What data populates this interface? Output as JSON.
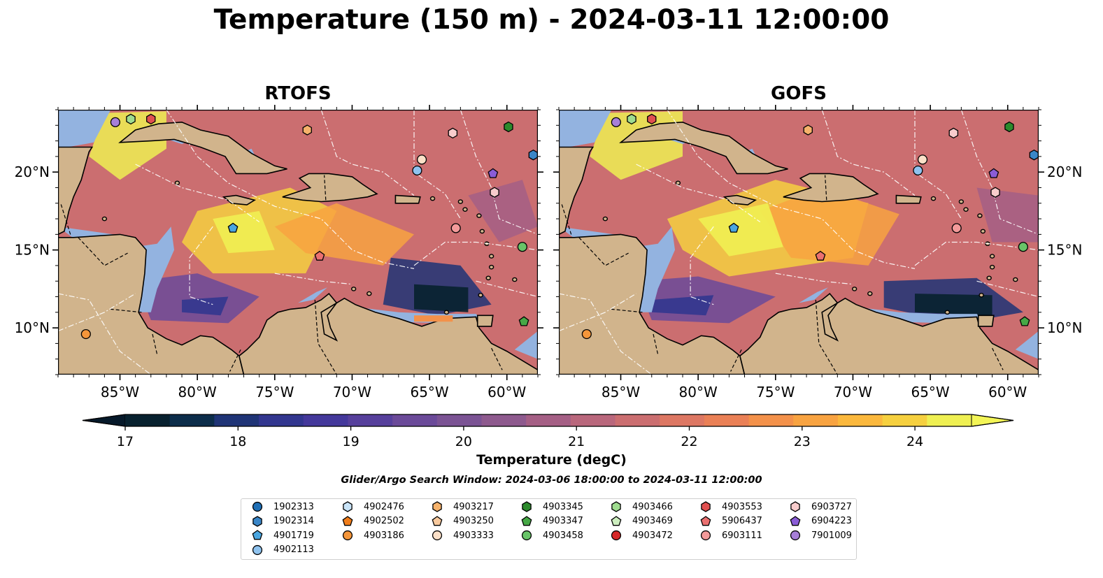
{
  "title": "Temperature (150 m) - 2024-03-11 12:00:00",
  "panels": [
    {
      "title": "RTOFS"
    },
    {
      "title": "GOFS"
    }
  ],
  "lat_labels": [
    "20°N",
    "15°N",
    "10°N"
  ],
  "lon_labels": [
    "85°W",
    "80°W",
    "75°W",
    "70°W",
    "65°W",
    "60°W"
  ],
  "colorbar": {
    "label": "Temperature (degC)",
    "ticks": [
      "17",
      "18",
      "19",
      "20",
      "21",
      "22",
      "23",
      "24"
    ],
    "colors": [
      "#08212f",
      "#0c2d4a",
      "#1f3476",
      "#32368f",
      "#44389b",
      "#57409c",
      "#6b4a99",
      "#7b5394",
      "#8e5a8e",
      "#a55f85",
      "#b9677c",
      "#cb6e70",
      "#dd7763",
      "#ea8056",
      "#f3914a",
      "#f8a341",
      "#fbb83d",
      "#f6d03f",
      "#eff052"
    ],
    "extend_min_color": "#06192a",
    "extend_max_color": "#f3f557"
  },
  "search_window": "Glider/Argo Search Window: 2024-03-06 18:00:00 to 2024-03-11 12:00:00",
  "colors": {
    "land": "#d1b48c",
    "shallow_water": "#93b3e0",
    "deep_pacific": "#082130"
  },
  "legend": [
    {
      "id": "1902313",
      "shape": "circle",
      "color": "#1f6fb5"
    },
    {
      "id": "1902314",
      "shape": "hexagon",
      "color": "#3a86c8"
    },
    {
      "id": "4901719",
      "shape": "pentagon",
      "color": "#4aa6e0"
    },
    {
      "id": "4902113",
      "shape": "circle",
      "color": "#8fc3ef"
    },
    {
      "id": "4902476",
      "shape": "hexagon",
      "color": "#c9e4f8"
    },
    {
      "id": "4902502",
      "shape": "pentagon",
      "color": "#f07d1a"
    },
    {
      "id": "4903186",
      "shape": "circle",
      "color": "#f5963a"
    },
    {
      "id": "4903217",
      "shape": "hexagon",
      "color": "#f6b26b"
    },
    {
      "id": "4903250",
      "shape": "pentagon",
      "color": "#f8c99d"
    },
    {
      "id": "4903333",
      "shape": "circle",
      "color": "#fbe0c8"
    },
    {
      "id": "4903345",
      "shape": "hexagon",
      "color": "#2c8a2c"
    },
    {
      "id": "4903347",
      "shape": "pentagon",
      "color": "#46a846"
    },
    {
      "id": "4903458",
      "shape": "circle",
      "color": "#68c468"
    },
    {
      "id": "4903466",
      "shape": "hexagon",
      "color": "#9fdc8f"
    },
    {
      "id": "4903469",
      "shape": "pentagon",
      "color": "#cdeebf"
    },
    {
      "id": "4903472",
      "shape": "circle",
      "color": "#d62728"
    },
    {
      "id": "4903553",
      "shape": "hexagon",
      "color": "#e05050"
    },
    {
      "id": "5906437",
      "shape": "pentagon",
      "color": "#ea7070"
    },
    {
      "id": "6903111",
      "shape": "circle",
      "color": "#f39a9a"
    },
    {
      "id": "6903727",
      "shape": "hexagon",
      "color": "#f8cccc"
    },
    {
      "id": "6904223",
      "shape": "pentagon",
      "color": "#8a5cd6"
    },
    {
      "id": "7901009",
      "shape": "circle",
      "color": "#a77fd8"
    }
  ],
  "markers": [
    {
      "id": "7901009",
      "lon": -85.3,
      "lat": 23.2
    },
    {
      "id": "4903466",
      "lon": -84.3,
      "lat": 23.4
    },
    {
      "id": "4903553",
      "lon": -83.0,
      "lat": 23.4
    },
    {
      "id": "4903217",
      "lon": -72.9,
      "lat": 22.7
    },
    {
      "id": "6903727",
      "lon": -63.5,
      "lat": 22.5
    },
    {
      "id": "4903345",
      "lon": -59.9,
      "lat": 22.9
    },
    {
      "id": "1902314",
      "lon": -58.3,
      "lat": 21.1
    },
    {
      "id": "4903333",
      "lon": -65.5,
      "lat": 20.8
    },
    {
      "id": "4902113",
      "lon": -65.8,
      "lat": 20.1
    },
    {
      "id": "6904223",
      "lon": -60.9,
      "lat": 19.9
    },
    {
      "id": "6903727",
      "lon": -60.8,
      "lat": 18.7
    },
    {
      "id": "4901719",
      "lon": -77.7,
      "lat": 16.4
    },
    {
      "id": "6903111",
      "lon": -63.3,
      "lat": 16.4
    },
    {
      "id": "5906437",
      "lon": -72.1,
      "lat": 14.6
    },
    {
      "id": "4903458",
      "lon": -59.0,
      "lat": 15.2
    },
    {
      "id": "4903347",
      "lon": -58.9,
      "lat": 10.4
    },
    {
      "id": "4903186",
      "lon": -87.2,
      "lat": 9.6
    }
  ]
}
